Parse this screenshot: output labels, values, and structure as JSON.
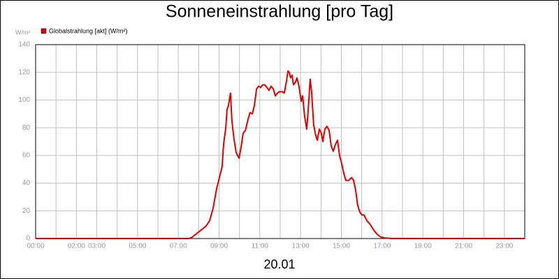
{
  "chart_data": {
    "type": "line",
    "title": "Sonneneinstrahlung [pro Tag]",
    "y_unit": "W/m²",
    "xlabel": "20.01",
    "x": [
      0,
      7.5,
      7.68,
      8.02,
      8.36,
      8.54,
      8.71,
      8.88,
      9.05,
      9.15,
      9.22,
      9.33,
      9.39,
      9.46,
      9.56,
      9.63,
      9.73,
      9.84,
      9.98,
      10.08,
      10.18,
      10.29,
      10.42,
      10.52,
      10.63,
      10.73,
      10.84,
      10.94,
      11.04,
      11.14,
      11.24,
      11.35,
      11.45,
      11.55,
      11.66,
      11.76,
      11.86,
      11.96,
      12.1,
      12.2,
      12.31,
      12.38,
      12.44,
      12.51,
      12.58,
      12.65,
      12.75,
      12.82,
      12.92,
      13.03,
      13.1,
      13.2,
      13.3,
      13.37,
      13.47,
      13.54,
      13.64,
      13.75,
      13.82,
      13.92,
      14.02,
      14.09,
      14.19,
      14.29,
      14.4,
      14.5,
      14.6,
      14.71,
      14.81,
      14.91,
      15.02,
      15.12,
      15.22,
      15.36,
      15.5,
      15.6,
      15.7,
      15.8,
      15.91,
      16.01,
      16.11,
      16.25,
      16.42,
      16.59,
      16.76,
      16.94,
      17.11,
      17.45,
      24
    ],
    "series": [
      {
        "name": "Globalstrahlung [akt] (W/m²)",
        "color": "#e00000",
        "values": [
          0,
          0,
          1,
          5,
          9,
          13,
          22,
          36,
          46,
          52,
          68,
          80,
          93,
          96,
          105,
          85,
          72,
          62,
          58,
          66,
          76,
          78,
          86,
          91,
          90,
          96,
          108,
          110,
          109,
          111,
          111,
          109,
          107,
          110,
          108,
          103,
          105,
          106,
          106,
          105,
          114,
          121,
          120,
          116,
          118,
          111,
          113,
          116,
          110,
          99,
          103,
          88,
          79,
          92,
          115,
          106,
          82,
          74,
          71,
          79,
          76,
          70,
          79,
          81,
          78,
          67,
          63,
          68,
          71,
          60,
          54,
          47,
          42,
          42,
          44,
          42,
          35,
          24,
          19,
          17,
          17,
          13,
          10,
          6,
          3,
          1,
          0.5,
          0,
          0
        ]
      }
    ],
    "xlim": [
      0,
      24
    ],
    "xticks": [
      {
        "value": 0,
        "label": "00:00"
      },
      {
        "value": 1,
        "label": null
      },
      {
        "value": 2,
        "label": "02:00"
      },
      {
        "value": 3,
        "label": "03:00"
      },
      {
        "value": 4,
        "label": null
      },
      {
        "value": 5,
        "label": "05:00"
      },
      {
        "value": 6,
        "label": null
      },
      {
        "value": 7,
        "label": "07:00"
      },
      {
        "value": 8,
        "label": null
      },
      {
        "value": 9,
        "label": "09:00"
      },
      {
        "value": 10,
        "label": null
      },
      {
        "value": 11,
        "label": "11:00"
      },
      {
        "value": 12,
        "label": null
      },
      {
        "value": 13,
        "label": "13:00"
      },
      {
        "value": 14,
        "label": null
      },
      {
        "value": 15,
        "label": "15:00"
      },
      {
        "value": 16,
        "label": null
      },
      {
        "value": 17,
        "label": "17:00"
      },
      {
        "value": 18,
        "label": null
      },
      {
        "value": 19,
        "label": "19:00"
      },
      {
        "value": 20,
        "label": null
      },
      {
        "value": 21,
        "label": "21:00"
      },
      {
        "value": 22,
        "label": null
      },
      {
        "value": 23,
        "label": "23:00"
      },
      {
        "value": 24,
        "label": null
      }
    ],
    "ylim": [
      0,
      140
    ],
    "yticks": [
      0,
      20,
      40,
      60,
      80,
      100,
      120,
      140
    ],
    "grid": true
  }
}
